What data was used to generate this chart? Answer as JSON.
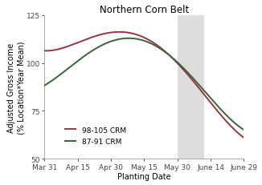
{
  "title": "Northern Corn Belt",
  "xlabel": "Planting Date",
  "ylabel": "Adjusted Gross Income\n(% Location*Year Mean)",
  "ylim": [
    50,
    125
  ],
  "xlim": [
    0,
    90
  ],
  "xtick_labels": [
    "Mar 31",
    "Apr 15",
    "Apr 30",
    "May 15",
    "May 30",
    "June 14",
    "June 29"
  ],
  "xtick_days": [
    0,
    15,
    30,
    45,
    60,
    75,
    90
  ],
  "ytick_vals": [
    50,
    75,
    100,
    125
  ],
  "shaded_start": 60,
  "shaded_end": 72,
  "crm_high": {
    "label": "98-105 CRM",
    "color": "#993344",
    "ctrl_x": [
      0,
      15,
      30,
      45,
      55,
      60,
      70,
      80,
      90
    ],
    "ctrl_y": [
      106,
      112,
      114,
      113,
      107,
      101,
      84,
      73,
      61
    ]
  },
  "crm_low": {
    "label": "87-91 CRM",
    "color": "#336633",
    "ctrl_x": [
      0,
      15,
      30,
      45,
      55,
      60,
      70,
      80,
      90
    ],
    "ctrl_y": [
      88,
      102,
      110,
      111,
      107,
      101,
      86,
      76,
      65
    ]
  },
  "background_color": "#ffffff",
  "title_fontsize": 8.5,
  "axis_fontsize": 7,
  "tick_fontsize": 6.5,
  "legend_fontsize": 6.5,
  "linewidth": 1.4,
  "shaded_color": "#cccccc",
  "shaded_alpha": 0.65
}
